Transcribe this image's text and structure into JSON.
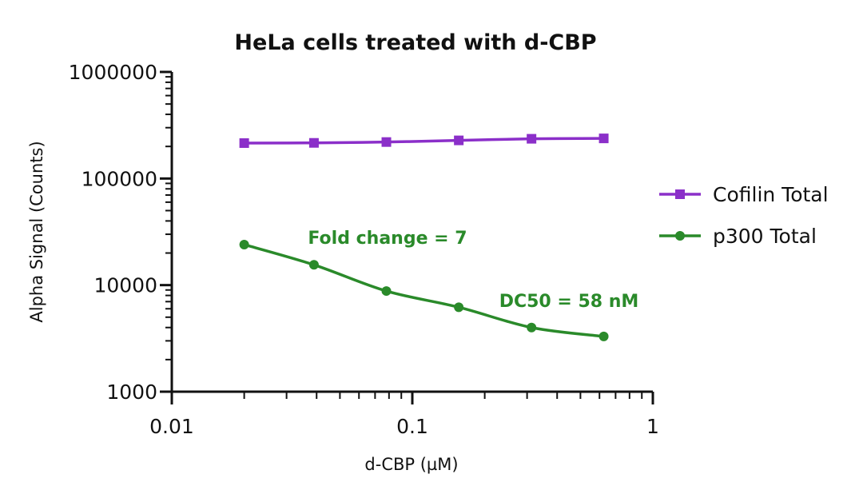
{
  "chart_data": {
    "type": "line",
    "title": "HeLa cells treated with d-CBP",
    "xlabel": "d-CBP (µM)",
    "ylabel": "Alpha Signal (Counts)",
    "x_scale": "log",
    "y_scale": "log",
    "xlim": [
      0.01,
      1
    ],
    "ylim": [
      1000,
      1000000
    ],
    "x_ticks": [
      {
        "value": 0.01,
        "label": "0.01"
      },
      {
        "value": 0.1,
        "label": "0.1"
      },
      {
        "value": 1,
        "label": "1"
      }
    ],
    "y_ticks": [
      {
        "value": 1000,
        "label": "1000"
      },
      {
        "value": 10000,
        "label": "10000"
      },
      {
        "value": 100000,
        "label": "100000"
      },
      {
        "value": 1000000,
        "label": "1000000"
      }
    ],
    "legend_position": "right",
    "series": [
      {
        "name": "Cofilin Total",
        "color": "#8B2FC9",
        "marker": "square",
        "x": [
          0.02,
          0.039,
          0.078,
          0.156,
          0.313,
          0.625
        ],
        "y": [
          215000,
          216000,
          220000,
          228000,
          236000,
          238000
        ]
      },
      {
        "name": "p300 Total",
        "color": "#2A8A2A",
        "marker": "circle",
        "x": [
          0.02,
          0.039,
          0.078,
          0.156,
          0.313,
          0.625
        ],
        "y": [
          24000,
          15500,
          8800,
          6200,
          4000,
          3300
        ]
      }
    ],
    "annotations": [
      {
        "text": "Fold change = 7",
        "color": "#2A8A2A"
      },
      {
        "text": "DC50 = 58 nM",
        "color": "#2A8A2A"
      }
    ]
  }
}
